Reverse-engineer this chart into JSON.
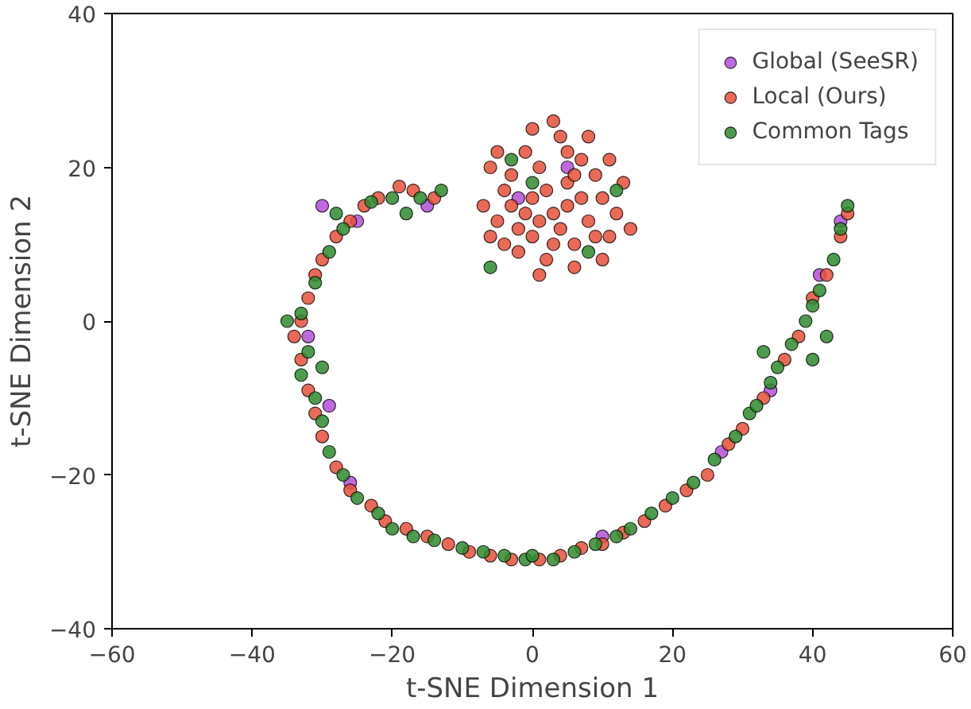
{
  "chart_data": {
    "type": "scatter",
    "xlabel": "t-SNE Dimension 1",
    "ylabel": "t-SNE Dimension 2",
    "xlim": [
      -60,
      60
    ],
    "ylim": [
      -40,
      40
    ],
    "xticks": [
      -60,
      -40,
      -20,
      0,
      20,
      40,
      60
    ],
    "yticks": [
      -40,
      -20,
      0,
      20,
      40
    ],
    "grid": false,
    "legend": "top right",
    "marker": "circle",
    "series": [
      {
        "name": "Global (SeeSR)",
        "color": "#b44fd9",
        "x": [
          -15,
          -25,
          -32,
          -29,
          -26,
          10,
          27,
          34,
          41,
          44,
          -2,
          5,
          -30
        ],
        "values": [
          15,
          13,
          -2,
          -11,
          -21,
          -28,
          -17,
          -9,
          6,
          13,
          16,
          20,
          15
        ]
      },
      {
        "name": "Local (Ours)",
        "color": "#e8503a",
        "x": [
          -14,
          -17,
          -19,
          -22,
          -24,
          -26,
          -28,
          -30,
          -31,
          -32,
          -33,
          -34,
          -33,
          -32,
          -31,
          -30,
          -28,
          -26,
          -23,
          -21,
          -18,
          -15,
          -12,
          -9,
          -6,
          -3,
          1,
          4,
          7,
          10,
          13,
          16,
          19,
          22,
          25,
          28,
          30,
          33,
          36,
          38,
          40,
          42,
          44,
          45,
          3,
          0,
          5,
          -2,
          8,
          1,
          6,
          -4,
          10,
          2,
          -1,
          4,
          7,
          -5,
          11,
          0,
          5,
          -3,
          9,
          3,
          -6,
          12,
          1,
          6,
          -7,
          13,
          -2,
          8,
          2,
          4,
          -1,
          7,
          10,
          -4,
          0,
          5,
          -5,
          14,
          3,
          9,
          -3,
          6,
          1,
          11,
          -6
        ],
        "values": [
          16,
          17,
          17.5,
          16,
          15,
          13,
          11,
          8,
          6,
          3,
          0,
          -2,
          -5,
          -9,
          -12,
          -15,
          -19,
          -22,
          -24,
          -26,
          -27,
          -28,
          -29,
          -30,
          -30.5,
          -31,
          -31,
          -30.5,
          -29.5,
          -29,
          -27.5,
          -26,
          -24,
          -22,
          -20,
          -16,
          -14,
          -10,
          -5,
          -2,
          3,
          6,
          11,
          14,
          14,
          16,
          18,
          12,
          13,
          20,
          10,
          17,
          16,
          8,
          22,
          24,
          21,
          13,
          11,
          11,
          15,
          19,
          19,
          26,
          20,
          14,
          6,
          7,
          15,
          18,
          9,
          24,
          17,
          12,
          14,
          16,
          8,
          10,
          25,
          22,
          22,
          12,
          10,
          11,
          15,
          19,
          13,
          21,
          11
        ]
      },
      {
        "name": "Common Tags",
        "color": "#2e8b2e",
        "x": [
          -13,
          -16,
          -20,
          -23,
          -27,
          -29,
          -31,
          -33,
          -32,
          -33,
          -31,
          -30,
          -29,
          -27,
          -25,
          -22,
          -20,
          -17,
          -14,
          -10,
          -7,
          -4,
          -1,
          0,
          3,
          6,
          9,
          12,
          14,
          17,
          20,
          23,
          26,
          29,
          31,
          32,
          34,
          35,
          37,
          39,
          40,
          41,
          43,
          44,
          45,
          42,
          33,
          -30,
          -35,
          -28,
          -18,
          40,
          -6,
          0,
          8,
          -3,
          12
        ],
        "values": [
          17,
          16,
          16,
          15.5,
          12,
          9,
          5,
          1,
          -4,
          -7,
          -10,
          -13,
          -17,
          -20,
          -23,
          -25,
          -27,
          -28,
          -28.5,
          -29.5,
          -30,
          -30.5,
          -31,
          -30.5,
          -31,
          -30,
          -29,
          -28,
          -27,
          -25,
          -23,
          -21,
          -18,
          -15,
          -12,
          -11,
          -8,
          -6,
          -3,
          0,
          2,
          4,
          8,
          12,
          15,
          -2,
          -4,
          -6,
          0,
          14,
          14,
          -5,
          7,
          18,
          9,
          21,
          17
        ]
      }
    ]
  }
}
